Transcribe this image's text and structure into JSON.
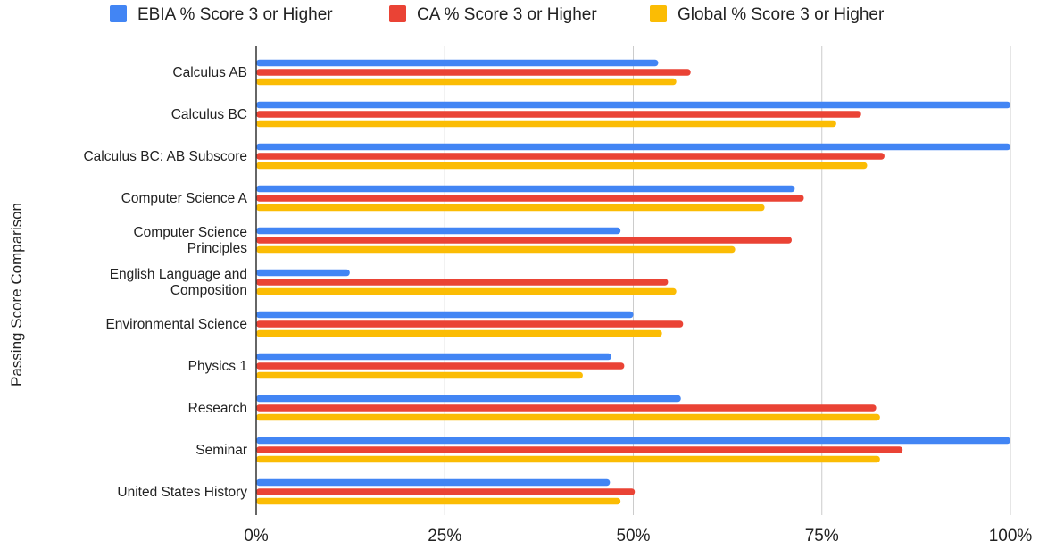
{
  "chart_data": {
    "type": "bar",
    "orientation": "horizontal",
    "title": "",
    "xlabel": "",
    "ylabel": "Passing Score Comparison",
    "xlim": [
      0,
      100
    ],
    "x_ticks": [
      "0%",
      "25%",
      "50%",
      "75%",
      "100%"
    ],
    "x_tick_values": [
      0,
      25,
      50,
      75,
      100
    ],
    "grid": true,
    "legend_position": "top",
    "categories": [
      [
        "Calculus AB"
      ],
      [
        "Calculus BC"
      ],
      [
        "Calculus BC: AB Subscore"
      ],
      [
        "Computer Science A"
      ],
      [
        "Computer Science",
        "Principles"
      ],
      [
        "English Language and",
        "Composition"
      ],
      [
        "Environmental Science"
      ],
      [
        "Physics 1"
      ],
      [
        "Research"
      ],
      [
        "Seminar"
      ],
      [
        "United States History"
      ]
    ],
    "series": [
      {
        "name": "EBIA % Score 3 or Higher",
        "color": "#4285F4",
        "values": [
          53.3,
          100,
          100,
          71.4,
          48.3,
          12.4,
          50.0,
          47.1,
          56.3,
          100,
          46.9
        ]
      },
      {
        "name": "CA % Score 3 or Higher",
        "color": "#EA4335",
        "values": [
          57.6,
          80.2,
          83.3,
          72.6,
          71.0,
          54.6,
          56.6,
          48.8,
          82.2,
          85.7,
          50.2
        ]
      },
      {
        "name": "Global % Score 3 or Higher",
        "color": "#FBBC04",
        "values": [
          55.7,
          76.9,
          81.0,
          67.4,
          63.5,
          55.7,
          53.8,
          43.3,
          82.7,
          82.7,
          48.3
        ]
      }
    ]
  }
}
